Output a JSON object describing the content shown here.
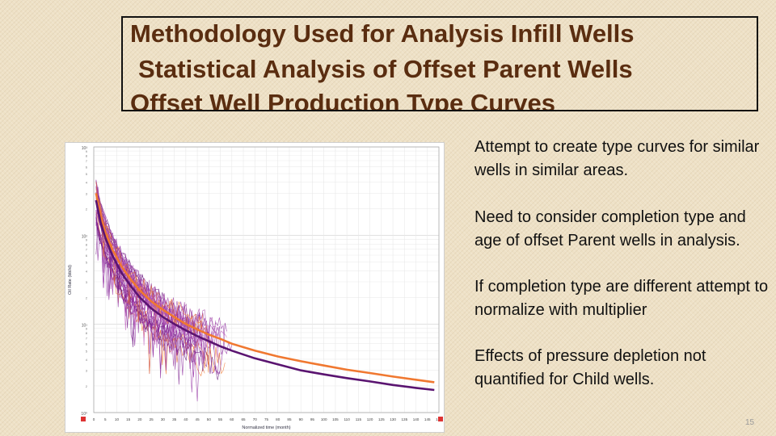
{
  "slide": {
    "title_line1": "Methodology Used for Analysis Infill Wells",
    "title_line2": "Statistical Analysis of Offset Parent Wells",
    "title_line3": "Offset Well Production Type Curves",
    "bullets": [
      "Attempt to create type curves for similar wells in similar areas.",
      "Need to consider completion type and age of offset Parent wells in analysis.",
      "If completion type are different attempt to normalize with multiplier",
      "Effects of pressure depletion not quantified for Child wells."
    ],
    "page_number": "15"
  },
  "colors": {
    "title": "#5a2d10",
    "orange": "#f07830",
    "purple": "#7a1e8c",
    "dark_purple": "#5a1470"
  },
  "chart_data": {
    "type": "line",
    "xlabel": "Normalized time (month)",
    "ylabel": "Oil Rate (bbl/d)",
    "xlim": [
      0,
      150
    ],
    "x_ticks": [
      0,
      5,
      10,
      15,
      20,
      25,
      30,
      35,
      40,
      45,
      50,
      55,
      60,
      65,
      70,
      75,
      80,
      85,
      90,
      95,
      100,
      105,
      110,
      115,
      120,
      125,
      130,
      135,
      140,
      145,
      150
    ],
    "y_scale": "log",
    "ylim": [
      1,
      1000
    ],
    "y_tick_labels": [
      "10⁰",
      "10¹",
      "10²",
      "10³"
    ],
    "series": [
      {
        "role": "orange type curve",
        "color": "#f07830",
        "x": [
          1,
          3,
          5,
          8,
          12,
          16,
          20,
          25,
          30,
          35,
          40,
          45,
          50,
          55,
          60,
          70,
          80,
          90,
          100,
          110,
          120,
          130,
          140,
          148
        ],
        "y": [
          300,
          170,
          110,
          70,
          45,
          32,
          24,
          18,
          14.5,
          12,
          10,
          8.7,
          7.6,
          6.8,
          6.0,
          5.0,
          4.3,
          3.8,
          3.4,
          3.05,
          2.8,
          2.55,
          2.35,
          2.2
        ]
      },
      {
        "role": "purple type curve",
        "color": "#5a1470",
        "x": [
          1,
          3,
          5,
          8,
          12,
          16,
          20,
          25,
          30,
          35,
          40,
          45,
          50,
          55,
          60,
          70,
          80,
          90,
          100,
          110,
          120,
          130,
          140,
          148
        ],
        "y": [
          250,
          140,
          95,
          60,
          38,
          27,
          20,
          15,
          12,
          10,
          8.5,
          7.3,
          6.4,
          5.6,
          5.0,
          4.1,
          3.5,
          3.0,
          2.7,
          2.45,
          2.25,
          2.05,
          1.9,
          1.8
        ]
      }
    ]
  }
}
